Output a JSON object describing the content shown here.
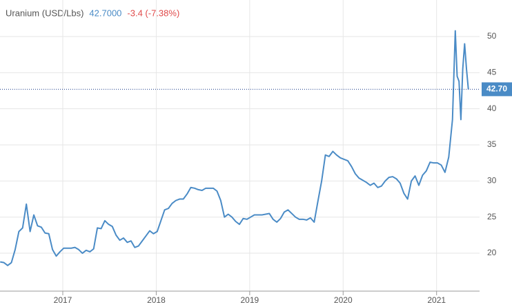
{
  "chart_data": {
    "type": "line",
    "title": "Uranium (USD/Lbs)",
    "price": "42.7000",
    "change": "-3.4 (-7.38%)",
    "last_marker": {
      "value": 42.7,
      "label": "42.70"
    },
    "x": [
      2016.33,
      2016.37,
      2016.41,
      2016.45,
      2016.49,
      2016.53,
      2016.57,
      2016.61,
      2016.65,
      2016.69,
      2016.73,
      2016.77,
      2016.81,
      2016.85,
      2016.89,
      2016.93,
      2016.97,
      2017.01,
      2017.05,
      2017.09,
      2017.13,
      2017.17,
      2017.21,
      2017.25,
      2017.29,
      2017.33,
      2017.37,
      2017.41,
      2017.45,
      2017.49,
      2017.53,
      2017.57,
      2017.61,
      2017.65,
      2017.69,
      2017.73,
      2017.77,
      2017.81,
      2017.85,
      2017.89,
      2017.93,
      2017.97,
      2018.01,
      2018.05,
      2018.09,
      2018.13,
      2018.17,
      2018.21,
      2018.25,
      2018.29,
      2018.33,
      2018.37,
      2018.41,
      2018.45,
      2018.49,
      2018.53,
      2018.57,
      2018.61,
      2018.65,
      2018.69,
      2018.73,
      2018.77,
      2018.81,
      2018.85,
      2018.89,
      2018.93,
      2018.97,
      2019.01,
      2019.05,
      2019.09,
      2019.13,
      2019.17,
      2019.21,
      2019.25,
      2019.29,
      2019.33,
      2019.37,
      2019.41,
      2019.45,
      2019.49,
      2019.53,
      2019.57,
      2019.61,
      2019.65,
      2019.69,
      2019.73,
      2019.77,
      2019.81,
      2019.85,
      2019.89,
      2019.93,
      2019.97,
      2020.01,
      2020.05,
      2020.09,
      2020.13,
      2020.17,
      2020.21,
      2020.25,
      2020.29,
      2020.33,
      2020.37,
      2020.41,
      2020.45,
      2020.49,
      2020.53,
      2020.57,
      2020.61,
      2020.65,
      2020.69,
      2020.73,
      2020.77,
      2020.81,
      2020.85,
      2020.89,
      2020.93,
      2020.97,
      2021.01,
      2021.05,
      2021.09,
      2021.13,
      2021.17,
      2021.2,
      2021.22,
      2021.24,
      2021.26,
      2021.28,
      2021.3,
      2021.32,
      2021.34
    ],
    "series": [
      {
        "name": "Uranium (USD/Lbs)",
        "color": "#4a8bc6",
        "values": [
          18.8,
          18.7,
          18.3,
          18.7,
          20.5,
          23,
          23.5,
          26.8,
          23,
          25.3,
          23.8,
          23.6,
          22.8,
          22.7,
          20.5,
          19.6,
          20.2,
          20.7,
          20.7,
          20.7,
          20.8,
          20.5,
          20,
          20.4,
          20.2,
          20.6,
          23.5,
          23.4,
          24.5,
          24,
          23.7,
          22.5,
          21.8,
          22.1,
          21.5,
          21.7,
          20.8,
          21,
          21.7,
          22.4,
          23.1,
          22.7,
          23,
          24.5,
          26,
          26.2,
          26.9,
          27.3,
          27.5,
          27.5,
          28.2,
          29.1,
          29,
          28.8,
          28.7,
          29,
          29,
          29,
          28.6,
          27.3,
          25,
          25.4,
          25,
          24.4,
          24,
          24.8,
          24.7,
          25,
          25.3,
          25.3,
          25.3,
          25.4,
          25.5,
          24.7,
          24.3,
          24.8,
          25.7,
          26,
          25.5,
          25,
          24.7,
          24.7,
          24.6,
          24.9,
          24.3,
          27.2,
          30,
          33.6,
          33.4,
          34.1,
          33.6,
          33.2,
          33,
          32.8,
          32,
          31,
          30.4,
          30.1,
          29.8,
          29.4,
          29.7,
          29.1,
          29.3,
          30,
          30.5,
          30.6,
          30.3,
          29.7,
          28.3,
          27.5,
          30,
          30.7,
          29.4,
          30.8,
          31.4,
          32.6,
          32.5,
          32.5,
          32.2,
          31.2,
          33.3,
          38.5,
          50.8,
          44.5,
          43.8,
          38.5,
          45.5,
          49,
          45.5,
          42.7
        ]
      }
    ],
    "xlim": [
      2016.328,
      2021.46
    ],
    "xticks": [
      2017,
      2018,
      2019,
      2020,
      2021
    ],
    "ylim": [
      14.75,
      55.06
    ],
    "yticks": [
      20,
      25,
      30,
      35,
      40,
      45,
      50
    ],
    "grid": true
  }
}
